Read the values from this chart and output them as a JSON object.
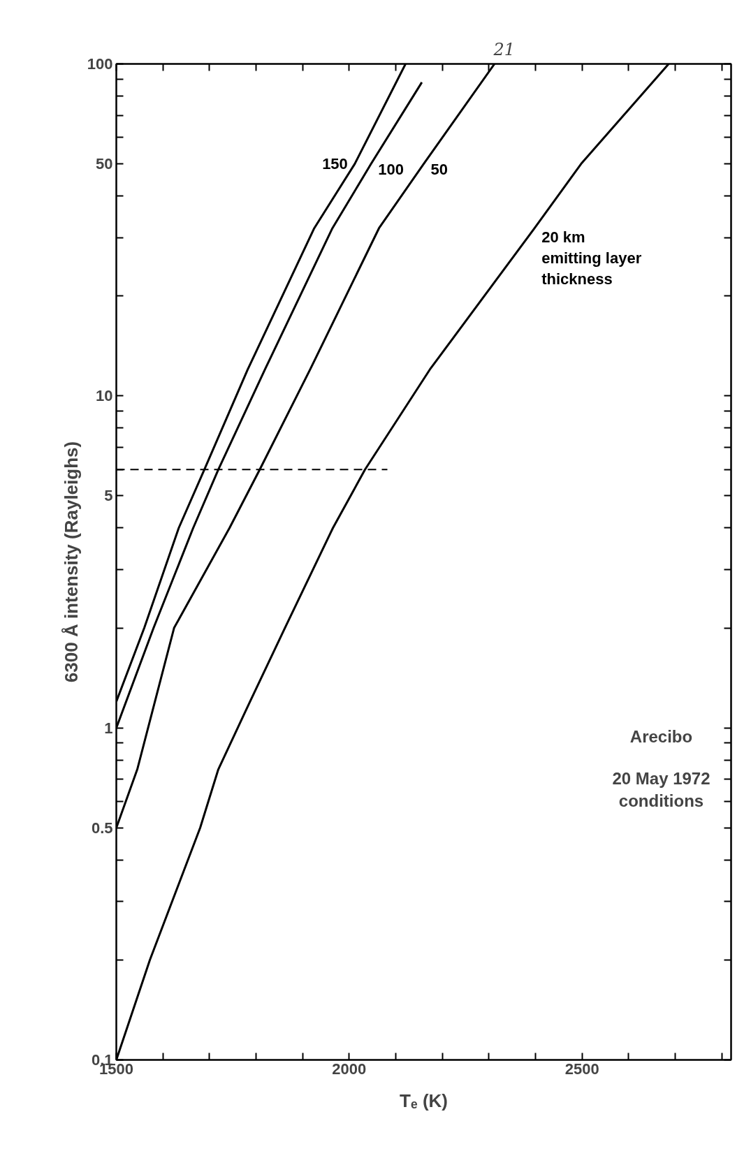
{
  "chart_data": {
    "type": "line",
    "xlabel": "Tₑ (K)",
    "ylabel": "6300 Å intensity (Rayleighs)",
    "annotations": [
      "21",
      "Arecibo",
      "20 May 1972\nconditions"
    ],
    "log": "y",
    "xlim": [
      1500,
      2820
    ],
    "ylim": [
      0.1,
      100
    ],
    "xticks": [
      1500,
      {
        "value": 1600,
        "label": null
      },
      {
        "value": 1700,
        "label": null
      },
      {
        "value": 1800,
        "label": null
      },
      {
        "value": 1900,
        "label": null
      },
      2000,
      {
        "value": 2100,
        "label": null
      },
      {
        "value": 2200,
        "label": null
      },
      {
        "value": 2300,
        "label": null
      },
      {
        "value": 2400,
        "label": null
      },
      2500,
      {
        "value": 2600,
        "label": null
      },
      {
        "value": 2700,
        "label": null
      },
      {
        "value": 2800,
        "label": null
      }
    ],
    "yticks": [
      0.1,
      {
        "value": 0.2,
        "label": null
      },
      {
        "value": 0.3,
        "label": null
      },
      {
        "value": 0.4,
        "label": null
      },
      0.5,
      {
        "value": 0.6,
        "label": null
      },
      {
        "value": 0.7,
        "label": null
      },
      {
        "value": 0.8,
        "label": null
      },
      {
        "value": 0.9,
        "label": null
      },
      1,
      {
        "value": 2,
        "label": null
      },
      {
        "value": 3,
        "label": null
      },
      {
        "value": 4,
        "label": null
      },
      5,
      {
        "value": 6,
        "label": null
      },
      {
        "value": 7,
        "label": null
      },
      {
        "value": 8,
        "label": null
      },
      {
        "value": 9,
        "label": null
      },
      10,
      {
        "value": 20,
        "label": null
      },
      {
        "value": 30,
        "label": null
      },
      {
        "value": 40,
        "label": null
      },
      50,
      {
        "value": 60,
        "label": null
      },
      {
        "value": 70,
        "label": null
      },
      {
        "value": 80,
        "label": null
      },
      {
        "value": 90,
        "label": null
      },
      100
    ],
    "grid": false,
    "marker": "none",
    "line_style": "solid",
    "series": [
      {
        "name": "150",
        "color": "#000000",
        "x": [
          1500,
          1560,
          1634,
          1689,
          1782,
          1925,
          2012,
          2121
        ],
        "values": [
          1.2,
          2,
          4,
          6,
          12,
          32,
          50,
          100
        ]
      },
      {
        "name": "100",
        "color": "#000000",
        "x": [
          1500,
          1580,
          1665,
          1719,
          1819,
          1964,
          2047,
          2156
        ],
        "values": [
          1.0,
          2,
          4,
          6,
          12,
          32,
          50,
          88
        ]
      },
      {
        "name": "50",
        "color": "#000000",
        "x": [
          1500,
          1545,
          1624,
          1743,
          1808,
          1916,
          2064,
          2160,
          2312
        ],
        "values": [
          0.5,
          0.75,
          2,
          4,
          6,
          12,
          32,
          50,
          100
        ]
      },
      {
        "name": "20 km\nemitting layer\nthickness",
        "color": "#000000",
        "x": [
          1500,
          1572,
          1680,
          1719,
          1787,
          1862,
          1965,
          2034,
          2173,
          2398,
          2498,
          2686
        ],
        "values": [
          0.1,
          0.2,
          0.5,
          0.75,
          1.2,
          2,
          4,
          6,
          12,
          32,
          50,
          100
        ]
      },
      {
        "color": "#000000",
        "line_style": "dashed",
        "x": [
          1500,
          2082
        ],
        "values": [
          6,
          6
        ]
      }
    ]
  }
}
